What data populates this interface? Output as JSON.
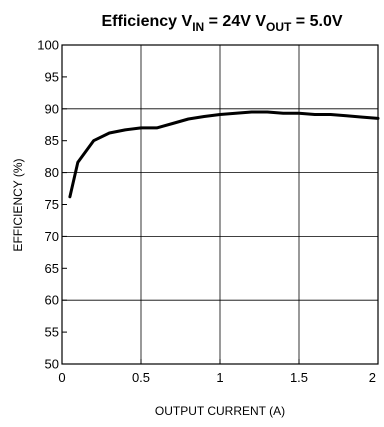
{
  "chart_data": {
    "type": "line",
    "title": {
      "main": "Efficiency V",
      "sub1": "IN",
      "mid": " = 24V V",
      "sub2": "OUT",
      "end": " = 5.0V"
    },
    "xlabel": "OUTPUT CURRENT (A)",
    "ylabel": "EFFICIENCY (%)",
    "xlim": [
      0,
      2
    ],
    "ylim": [
      50,
      100
    ],
    "x_ticks": [
      0,
      0.5,
      1,
      1.5,
      2
    ],
    "x_tick_labels": [
      "0",
      "0.5",
      "1",
      "1.5",
      "2"
    ],
    "y_ticks": [
      50,
      55,
      60,
      65,
      70,
      75,
      80,
      85,
      90,
      95,
      100
    ],
    "y_tick_labels": [
      "50",
      "55",
      "60",
      "65",
      "70",
      "75",
      "80",
      "85",
      "90",
      "95",
      "100"
    ],
    "x_gridlines": [
      0.5,
      1,
      1.5
    ],
    "y_gridlines": [
      60,
      70,
      80,
      90
    ],
    "grid": true,
    "line_color": "#000000",
    "series": [
      {
        "x": [
          0.05,
          0.1,
          0.2,
          0.3,
          0.4,
          0.5,
          0.6,
          0.7,
          0.8,
          0.9,
          1.0,
          1.1,
          1.2,
          1.3,
          1.4,
          1.5,
          1.6,
          1.7,
          1.8,
          1.9,
          2.0
        ],
        "y": [
          76.2,
          81.6,
          85.0,
          86.2,
          86.7,
          87.0,
          87.0,
          87.7,
          88.4,
          88.8,
          89.1,
          89.3,
          89.5,
          89.5,
          89.3,
          89.3,
          89.1,
          89.1,
          88.9,
          88.7,
          88.5
        ]
      }
    ]
  }
}
